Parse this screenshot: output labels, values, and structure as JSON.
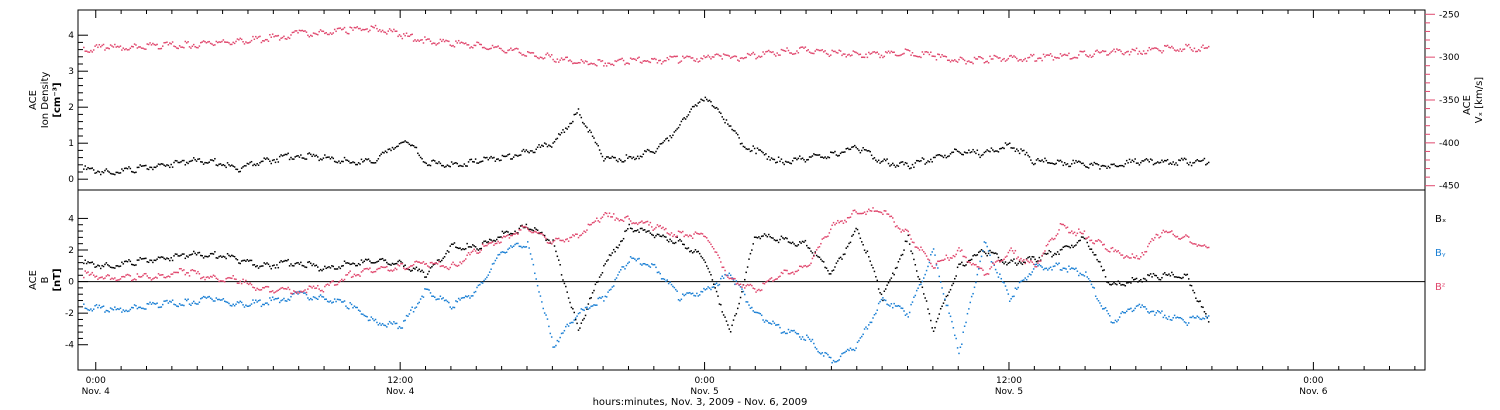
{
  "chart_data": [
    {
      "type": "scatter",
      "panel": "top",
      "ylabel_lines": [
        "ACE",
        "Ion Density",
        "[cm⁻³]"
      ],
      "ylim": [
        -0.3,
        4.7
      ],
      "yticks": [
        0,
        1,
        2,
        3,
        4
      ],
      "right_ylabel": "Vₓ [km/s]",
      "right_ylabel_prefix": "ACE",
      "right_ylim": [
        -455,
        -245
      ],
      "right_yticks": [
        -450,
        -400,
        -350,
        -300,
        -250
      ],
      "series": [
        {
          "name": "Ion Density",
          "axis": "left",
          "color": "#000000",
          "x_hours": [
            -0.5,
            0.5,
            1.5,
            2.5,
            3.5,
            4.5,
            5.5,
            6.5,
            8.0,
            9.0,
            10.0,
            11.0,
            11.5,
            12.0,
            12.5,
            13.0,
            14.0,
            15.0,
            16.0,
            17.0,
            18.0,
            19.0,
            20.0,
            21.0,
            22.0,
            23.0,
            23.5,
            24.0,
            24.5,
            25.0,
            25.5,
            26.0,
            27.0,
            28.0,
            29.0,
            30.0,
            31.0,
            32.0,
            33.0,
            34.0,
            35.0,
            36.0,
            37.0,
            38.0,
            39.0,
            40.0,
            41.0,
            42.0,
            43.0,
            43.9
          ],
          "values": [
            0.3,
            0.2,
            0.3,
            0.4,
            0.5,
            0.55,
            0.3,
            0.5,
            0.7,
            0.6,
            0.5,
            0.5,
            0.8,
            1.1,
            0.9,
            0.5,
            0.4,
            0.5,
            0.6,
            0.8,
            1.0,
            1.9,
            0.6,
            0.6,
            0.8,
            1.5,
            2.1,
            2.2,
            2.0,
            1.4,
            1.0,
            0.8,
            0.5,
            0.6,
            0.7,
            0.9,
            0.5,
            0.4,
            0.6,
            0.8,
            0.7,
            1.0,
            0.5,
            0.5,
            0.4,
            0.4,
            0.5,
            0.5,
            0.5,
            0.5
          ]
        },
        {
          "name": "Vₓ",
          "axis": "right",
          "color": "#e0486e",
          "x_hours": [
            -0.5,
            0.5,
            1.5,
            2.5,
            3.5,
            4.5,
            5.5,
            6.5,
            8.0,
            9.0,
            10.0,
            11.0,
            12.0,
            13.0,
            14.0,
            15.0,
            16.0,
            17.0,
            18.0,
            19.0,
            20.0,
            21.0,
            22.0,
            23.0,
            24.0,
            24.5,
            25.0,
            26.0,
            27.0,
            28.0,
            29.0,
            30.0,
            31.0,
            32.0,
            33.0,
            34.0,
            35.0,
            36.0,
            37.0,
            38.0,
            39.0,
            40.0,
            41.0,
            42.0,
            43.0,
            43.9
          ],
          "values": [
            -290,
            -288,
            -287,
            -286,
            -285,
            -283,
            -281,
            -278,
            -272,
            -270,
            -268,
            -265,
            -273,
            -280,
            -283,
            -285,
            -290,
            -294,
            -300,
            -306,
            -306,
            -303,
            -303,
            -302,
            -300,
            -295,
            -302,
            -297,
            -293,
            -290,
            -295,
            -295,
            -296,
            -293,
            -298,
            -303,
            -302,
            -300,
            -300,
            -298,
            -296,
            -293,
            -292,
            -290,
            -288,
            -290
          ]
        }
      ]
    },
    {
      "type": "scatter",
      "panel": "bottom",
      "ylabel_lines": [
        "ACE",
        "B",
        "[nT]"
      ],
      "ylim": [
        -5.6,
        5.8
      ],
      "yticks": [
        -4,
        -2,
        0,
        2,
        4
      ],
      "zero_line": true,
      "legend_placement": "right",
      "series": [
        {
          "name": "Bₓ",
          "color": "#000000",
          "x_hours": [
            -0.5,
            0.5,
            1.5,
            2.5,
            3.5,
            4.5,
            5.5,
            6.5,
            8.0,
            9.0,
            10.0,
            11.0,
            12.0,
            13.0,
            14.0,
            15.0,
            16.0,
            17.0,
            18.0,
            19.0,
            20.0,
            21.0,
            22.0,
            23.0,
            24.0,
            25.0,
            26.0,
            27.0,
            28.0,
            29.0,
            30.0,
            31.0,
            32.0,
            33.0,
            34.0,
            35.0,
            36.0,
            37.0,
            38.0,
            39.0,
            40.0,
            41.0,
            42.0,
            43.0,
            43.9
          ],
          "values": [
            1.2,
            1.0,
            1.3,
            1.5,
            1.7,
            1.8,
            1.5,
            1.0,
            1.3,
            0.8,
            1.2,
            1.3,
            1.2,
            0.5,
            2.3,
            2.2,
            3.0,
            3.5,
            2.5,
            -3.0,
            1.0,
            3.5,
            3.0,
            2.6,
            1.4,
            -3.2,
            3.0,
            2.7,
            2.4,
            0.5,
            3.5,
            -1.0,
            2.8,
            -3.0,
            1.0,
            2.0,
            1.2,
            1.5,
            2.0,
            2.8,
            -0.3,
            0.2,
            0.4,
            0.4,
            -2.8
          ]
        },
        {
          "name": "Bᵧ",
          "color": "#1a7fd4",
          "x_hours": [
            -0.5,
            0.5,
            1.5,
            2.5,
            3.5,
            4.5,
            5.5,
            6.5,
            8.0,
            9.0,
            10.0,
            11.0,
            12.0,
            13.0,
            14.0,
            15.0,
            16.0,
            17.0,
            18.0,
            19.0,
            20.0,
            21.0,
            22.0,
            23.0,
            24.0,
            25.0,
            26.0,
            27.0,
            28.0,
            29.0,
            30.0,
            31.0,
            32.0,
            33.0,
            34.0,
            35.0,
            36.0,
            37.0,
            38.0,
            39.0,
            40.0,
            41.0,
            42.0,
            43.0,
            43.9
          ],
          "values": [
            -1.5,
            -1.8,
            -1.6,
            -1.4,
            -1.3,
            -1.0,
            -1.4,
            -1.3,
            -0.8,
            -1.0,
            -1.5,
            -2.5,
            -2.8,
            -0.5,
            -1.5,
            -0.5,
            2.0,
            2.5,
            -4.0,
            -2.0,
            -1.0,
            1.5,
            1.0,
            -1.0,
            -0.5,
            0.5,
            -2.0,
            -3.0,
            -3.5,
            -5.0,
            -4.0,
            -1.0,
            -2.0,
            2.0,
            -4.5,
            2.5,
            -1.0,
            1.0,
            1.0,
            0.5,
            -2.5,
            -1.5,
            -2.0,
            -2.5,
            -2.0
          ]
        },
        {
          "name": "Bᶻ",
          "color": "#e0486e",
          "x_hours": [
            -0.5,
            0.5,
            1.5,
            2.5,
            3.5,
            4.5,
            5.5,
            6.5,
            8.0,
            9.0,
            10.0,
            11.0,
            12.0,
            13.0,
            14.0,
            15.0,
            16.0,
            17.0,
            18.0,
            19.0,
            20.0,
            21.0,
            22.0,
            23.0,
            24.0,
            25.0,
            26.0,
            27.0,
            28.0,
            29.0,
            30.0,
            31.0,
            32.0,
            33.0,
            34.0,
            35.0,
            36.0,
            37.0,
            38.0,
            39.0,
            40.0,
            41.0,
            42.0,
            43.0,
            43.9
          ],
          "values": [
            0.5,
            0.3,
            0.3,
            0.4,
            0.7,
            0.3,
            0.2,
            -0.5,
            -0.5,
            -0.4,
            0.5,
            0.8,
            1.0,
            1.2,
            1.0,
            2.0,
            2.8,
            3.5,
            2.5,
            3.0,
            4.2,
            4.0,
            3.5,
            3.0,
            3.0,
            0.2,
            -0.5,
            0.5,
            1.0,
            3.5,
            4.5,
            4.5,
            3.0,
            1.0,
            2.0,
            0.5,
            2.0,
            1.0,
            3.5,
            3.0,
            2.0,
            1.5,
            3.2,
            2.8,
            2.0
          ]
        }
      ]
    }
  ],
  "x_axis": {
    "range_hours": [
      -0.7,
      52.4
    ],
    "ticks": [
      {
        "hours": 0,
        "time": "0:00",
        "date": "Nov. 4"
      },
      {
        "hours": 12,
        "time": "12:00",
        "date": "Nov. 4"
      },
      {
        "hours": 24,
        "time": "0:00",
        "date": "Nov. 5"
      },
      {
        "hours": 36,
        "time": "12:00",
        "date": "Nov. 5"
      },
      {
        "hours": 48,
        "time": "0:00",
        "date": "Nov. 6"
      }
    ],
    "label": "hours:minutes, Nov.  3, 2009 - Nov.  6, 2009"
  }
}
